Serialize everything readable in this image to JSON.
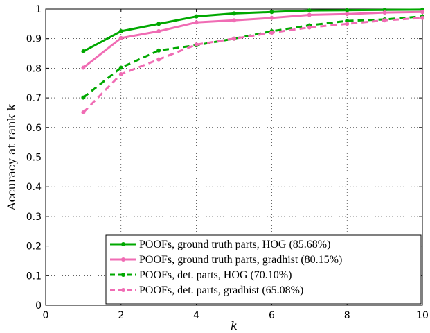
{
  "chart_data": {
    "type": "line",
    "title": "",
    "xlabel": "k",
    "ylabel": "Accuracy at rank k",
    "xlim": [
      0,
      10
    ],
    "ylim": [
      0,
      1
    ],
    "xticks": [
      0,
      2,
      4,
      6,
      8,
      10
    ],
    "yticks": [
      0,
      0.1,
      0.2,
      0.3,
      0.4,
      0.5,
      0.6,
      0.7,
      0.8,
      0.9,
      1
    ],
    "xtick_labels": [
      "0",
      "2",
      "4",
      "6",
      "8",
      "10"
    ],
    "ytick_labels": [
      "0",
      "0.1",
      "0.2",
      "0.3",
      "0.4",
      "0.5",
      "0.6",
      "0.7",
      "0.8",
      "0.9",
      "1"
    ],
    "grid": true,
    "legend_position": "bottom-right",
    "x": [
      1,
      2,
      3,
      4,
      5,
      6,
      7,
      8,
      9,
      10
    ],
    "series": [
      {
        "name": "POOFs, ground truth parts, HOG (85.68%)",
        "color": "#00a800",
        "dashed": false,
        "values": [
          0.857,
          0.925,
          0.95,
          0.975,
          0.985,
          0.99,
          0.995,
          0.996,
          0.997,
          0.998
        ]
      },
      {
        "name": "POOFs, ground truth parts, gradhist (80.15%)",
        "color": "#f06cb4",
        "dashed": false,
        "values": [
          0.802,
          0.902,
          0.925,
          0.955,
          0.962,
          0.97,
          0.98,
          0.983,
          0.988,
          0.99
        ]
      },
      {
        "name": "POOFs, det. parts, HOG (70.10%)",
        "color": "#00a800",
        "dashed": true,
        "values": [
          0.701,
          0.802,
          0.86,
          0.878,
          0.9,
          0.925,
          0.945,
          0.96,
          0.965,
          0.975
        ]
      },
      {
        "name": "POOFs, det. parts, gradhist (65.08%)",
        "color": "#f06cb4",
        "dashed": true,
        "values": [
          0.651,
          0.78,
          0.83,
          0.88,
          0.9,
          0.92,
          0.938,
          0.95,
          0.962,
          0.97
        ]
      }
    ]
  }
}
